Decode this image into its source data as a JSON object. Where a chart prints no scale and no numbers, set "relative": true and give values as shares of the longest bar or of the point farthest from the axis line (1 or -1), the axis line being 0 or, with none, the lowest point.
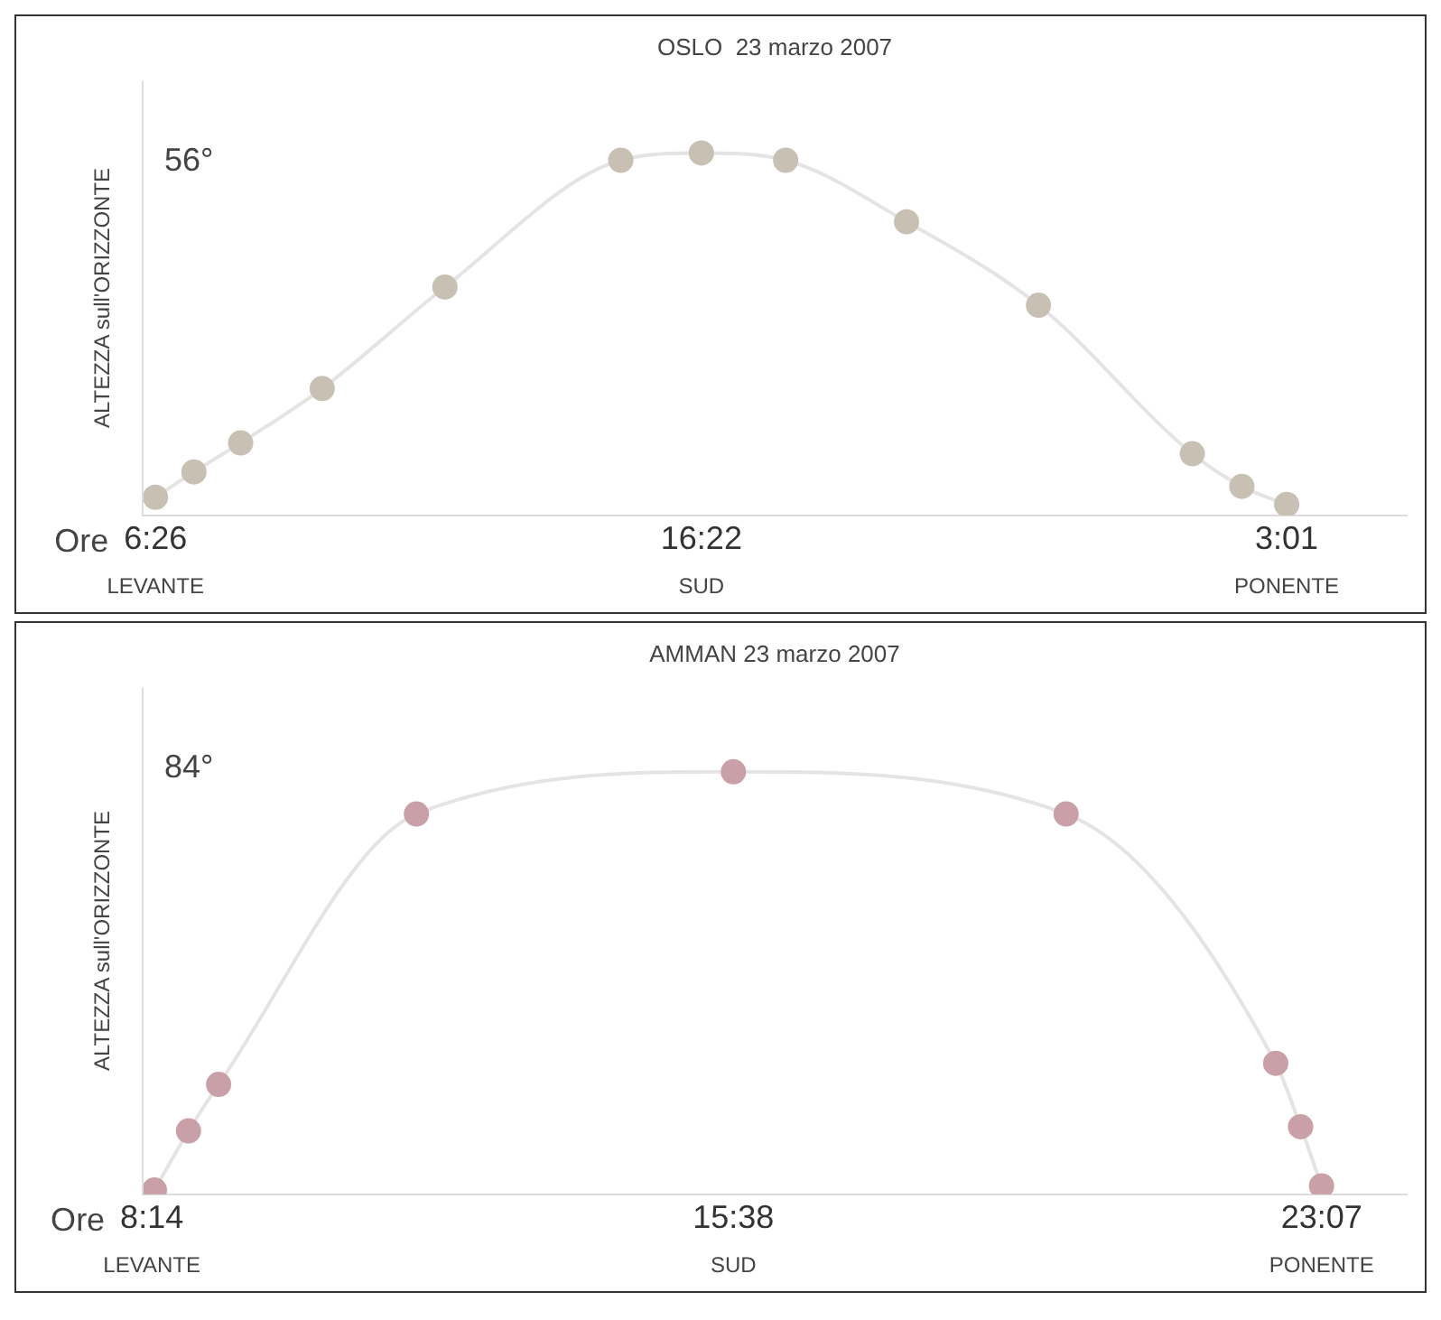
{
  "chart_data": [
    {
      "type": "line",
      "title": "OSLO  23 marzo 2007",
      "xlabel": "Ore",
      "ylabel": "ALTEZZA sull'ORIZZONTE",
      "relative": true,
      "grid": false,
      "legend": false,
      "marker": "circle",
      "line_style": "solid",
      "xlim": [
        "2007-03-23T06:12",
        "2007-03-24T05:12"
      ],
      "xticks": [
        {
          "value": "2007-03-23T06:26",
          "label": "6:26"
        },
        {
          "value": "2007-03-23T16:22",
          "label": "16:22"
        },
        {
          "value": "2007-03-24T03:01",
          "label": "3:01"
        }
      ],
      "series": [
        {
          "color": "#c9c0b4",
          "x": [
            "2007-03-23T06:26",
            "2007-03-23T07:08",
            "2007-03-23T07:59",
            "2007-03-23T09:28",
            "2007-03-23T11:42",
            "2007-03-23T14:54",
            "2007-03-23T16:22",
            "2007-03-23T17:54",
            "2007-03-23T20:06",
            "2007-03-23T22:30",
            "2007-03-24T01:18",
            "2007-03-24T02:12",
            "2007-03-24T03:01"
          ],
          "values": [
            0.05,
            0.12,
            0.2,
            0.35,
            0.63,
            0.98,
            1.0,
            0.98,
            0.81,
            0.58,
            0.17,
            0.08,
            0.03
          ]
        }
      ],
      "annotations": [
        "56°",
        "LEVANTE",
        "SUD",
        "PONENTE"
      ]
    },
    {
      "type": "line",
      "title": "AMMAN 23 marzo 2007",
      "xlabel": "Ore",
      "ylabel": "ALTEZZA sull'ORIZZONTE",
      "relative": true,
      "grid": false,
      "legend": false,
      "marker": "circle",
      "line_style": "solid",
      "xlim": [
        "2007-03-23T08:07",
        "2007-03-24T00:12"
      ],
      "xticks": [
        {
          "value": "2007-03-23T08:14",
          "label": "8:14"
        },
        {
          "value": "2007-03-23T15:38",
          "label": "15:38"
        },
        {
          "value": "2007-03-23T23:07",
          "label": "23:07"
        }
      ],
      "series": [
        {
          "color": "#c9a0a8",
          "x": [
            "2007-03-23T08:16",
            "2007-03-23T08:42",
            "2007-03-23T09:05",
            "2007-03-23T11:36",
            "2007-03-23T15:38",
            "2007-03-23T19:52",
            "2007-03-23T22:32",
            "2007-03-23T22:51",
            "2007-03-23T23:07"
          ],
          "values": [
            0.01,
            0.15,
            0.26,
            0.9,
            1.0,
            0.9,
            0.31,
            0.16,
            0.02
          ]
        }
      ],
      "annotations": [
        "84°",
        "LEVANTE",
        "SUD",
        "PONENTE"
      ]
    }
  ]
}
